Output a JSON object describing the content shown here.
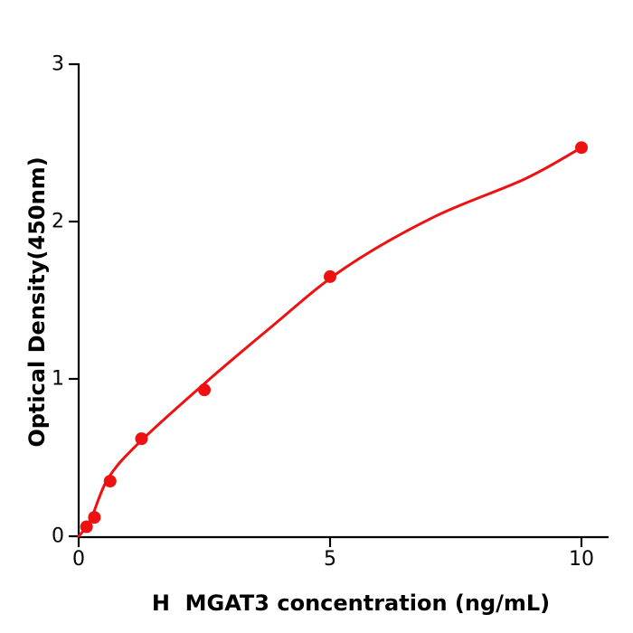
{
  "figure": {
    "background_color": "#ffffff",
    "axis_color": "#000000",
    "accent_color": "#ee1111"
  },
  "chart_data": {
    "type": "scatter",
    "title": "",
    "xlabel": "H  MGAT3 concentration (ng/mL)",
    "ylabel": "Optical Density(450nm)",
    "xlim": [
      0,
      10.55
    ],
    "ylim": [
      0,
      3
    ],
    "x_ticks": [
      0,
      5,
      10
    ],
    "y_ticks": [
      0,
      1,
      2,
      3
    ],
    "grid": false,
    "legend_position": "none",
    "series": [
      {
        "name": "standard-points",
        "type": "scatter",
        "color": "#ee1111",
        "marker": "circle",
        "x": [
          0.156,
          0.313,
          0.625,
          1.25,
          2.5,
          5,
          10
        ],
        "y": [
          0.06,
          0.12,
          0.35,
          0.62,
          0.93,
          1.65,
          2.47
        ]
      },
      {
        "name": "fitted-curve",
        "type": "line",
        "color": "#ee1111",
        "x": [
          0,
          0.23,
          0.59,
          1.22,
          2.5,
          3.83,
          5.27,
          7.07,
          8.87,
          10.0
        ],
        "y": [
          0,
          0.1,
          0.37,
          0.6,
          0.97,
          1.33,
          1.7,
          2.03,
          2.27,
          2.47
        ]
      }
    ]
  }
}
